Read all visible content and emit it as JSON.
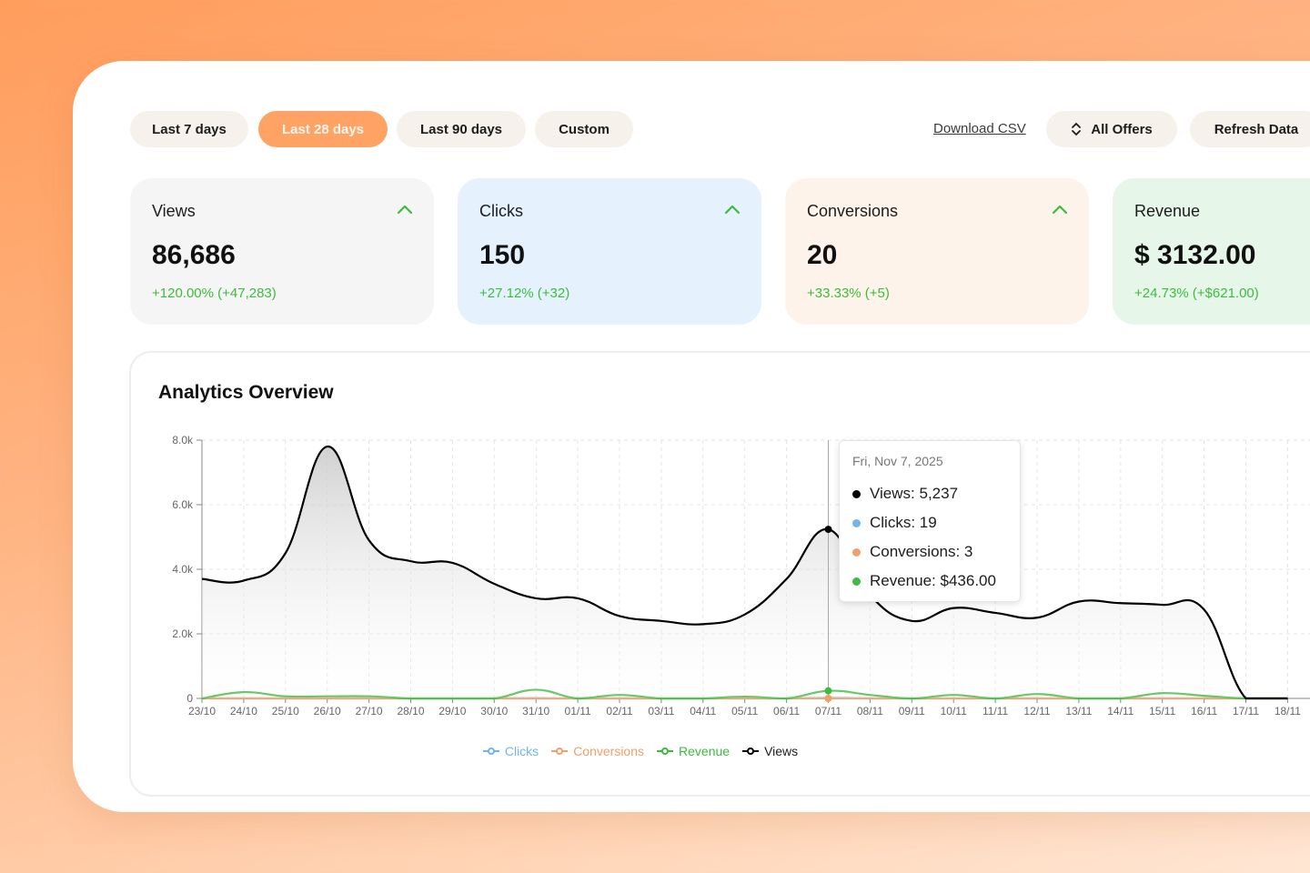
{
  "filters": {
    "last7": "Last 7 days",
    "last28": "Last 28 days",
    "last90": "Last 90 days",
    "custom": "Custom"
  },
  "actions": {
    "download_csv": "Download CSV",
    "all_offers": "All Offers",
    "refresh": "Refresh Data"
  },
  "stats": {
    "views": {
      "label": "Views",
      "value": "86,686",
      "delta": "+120.00% (+47,283)"
    },
    "clicks": {
      "label": "Clicks",
      "value": "150",
      "delta": "+27.12% (+32)"
    },
    "conversions": {
      "label": "Conversions",
      "value": "20",
      "delta": "+33.33% (+5)"
    },
    "revenue": {
      "label": "Revenue",
      "value": "$ 3132.00",
      "delta": "+24.73% (+$621.00)"
    }
  },
  "colors": {
    "views": "#000000",
    "clicks": "#6fb6f0",
    "conversions": "#f0a06a",
    "revenue": "#3dbb3d",
    "views_card": "#f5f5f5",
    "clicks_card": "#e5f2fd",
    "conversions_card": "#fdf3ea",
    "revenue_card": "#e6f7ea"
  },
  "panel": {
    "title": "Analytics Overview"
  },
  "tooltip": {
    "date": "Fri, Nov 7, 2025",
    "views": "Views: 5,237",
    "clicks": "Clicks: 19",
    "conversions": "Conversions: 3",
    "revenue": "Revenue: $436.00"
  },
  "chart_data": {
    "type": "area",
    "x": [
      "23/10",
      "24/10",
      "25/10",
      "26/10",
      "27/10",
      "28/10",
      "29/10",
      "30/10",
      "31/10",
      "01/11",
      "02/11",
      "03/11",
      "04/11",
      "05/11",
      "06/11",
      "07/11",
      "08/11",
      "09/11",
      "10/11",
      "11/11",
      "12/11",
      "13/11",
      "14/11",
      "15/11",
      "16/11",
      "17/11",
      "18/11"
    ],
    "x_tick_labels": [
      "23/10",
      "24/10",
      "25/10",
      "26/10",
      "27/10",
      "28/10",
      "29/10",
      "30/10",
      "31/10",
      "01/11",
      "02/11",
      "03/11",
      "04/11",
      "05/11",
      "06/11",
      "07/11",
      "08/11",
      "09/11",
      "10/11",
      "11/11",
      "12/11",
      "13/11",
      "14/11",
      "15/11",
      "16/11",
      "17/11",
      "18/11"
    ],
    "y_ticks": [
      0,
      2000,
      4000,
      6000,
      8000
    ],
    "y_tick_labels": [
      "0",
      "2.0k",
      "4.0k",
      "6.0k",
      "8.0k"
    ],
    "ylim": [
      0,
      8000
    ],
    "grid": true,
    "legend_position": "bottom",
    "series": [
      {
        "name": "Clicks",
        "values": [
          4,
          7,
          3,
          2,
          3,
          0,
          0,
          3,
          10,
          0,
          6,
          0,
          0,
          2,
          0,
          19,
          6,
          0,
          3,
          0,
          6,
          0,
          0,
          6,
          3,
          0,
          0
        ]
      },
      {
        "name": "Conversions",
        "values": [
          0,
          1,
          0,
          0,
          1,
          0,
          0,
          0,
          1,
          0,
          0,
          0,
          0,
          0,
          0,
          3,
          1,
          0,
          0,
          0,
          1,
          0,
          0,
          0,
          0,
          0,
          0
        ]
      },
      {
        "name": "Revenue",
        "values": [
          0,
          360,
          120,
          120,
          120,
          0,
          0,
          0,
          500,
          0,
          200,
          0,
          0,
          100,
          0,
          436,
          200,
          0,
          200,
          0,
          250,
          0,
          0,
          300,
          150,
          0,
          0
        ]
      },
      {
        "name": "Views",
        "values": [
          3700,
          3650,
          4500,
          7800,
          4900,
          4250,
          4200,
          3550,
          3100,
          3100,
          2550,
          2400,
          2300,
          2600,
          3700,
          5237,
          3200,
          2400,
          2800,
          2650,
          2500,
          3000,
          2950,
          2900,
          2750,
          0,
          0
        ]
      }
    ]
  },
  "legend": {
    "clicks": "Clicks",
    "conversions": "Conversions",
    "revenue": "Revenue",
    "views": "Views"
  }
}
